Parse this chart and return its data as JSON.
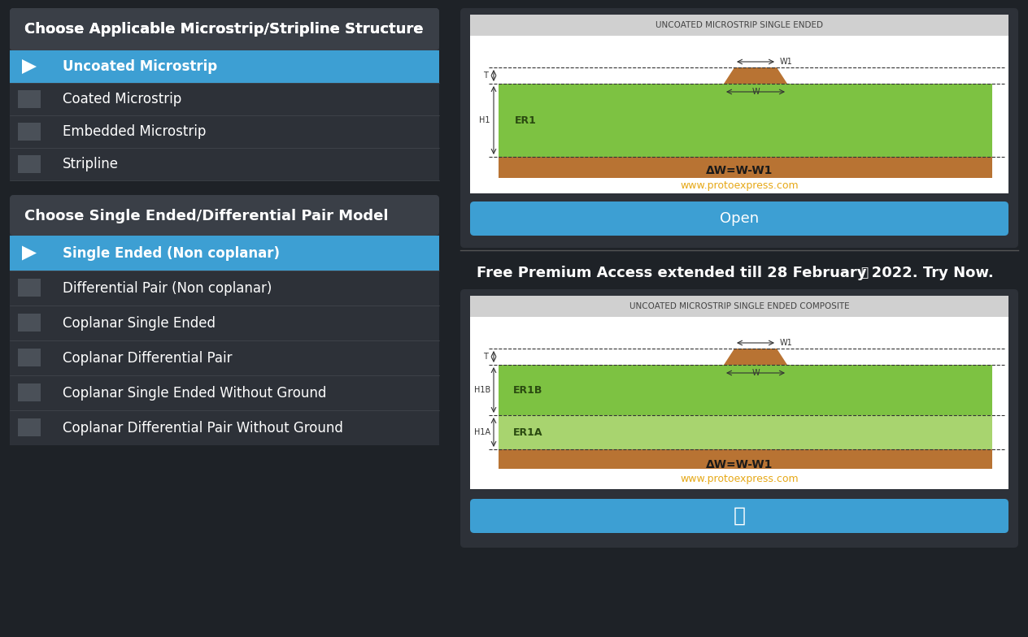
{
  "bg_color": "#1e2227",
  "panel_color": "#2d3138",
  "header_color": "#3a3f47",
  "selected_row_color": "#3d9fd3",
  "unselected_row_color": "#2d3138",
  "checkbox_color": "#4a5058",
  "text_color": "#ffffff",
  "section1_title": "Choose Applicable Microstrip/Stripline Structure",
  "section1_items": [
    "Uncoated Microstrip",
    "Coated Microstrip",
    "Embedded Microstrip",
    "Stripline"
  ],
  "section1_selected": 0,
  "section2_title": "Choose Single Ended/Differential Pair Model",
  "section2_items": [
    "Single Ended (Non coplanar)",
    "Differential Pair (Non coplanar)",
    "Coplanar Single Ended",
    "Coplanar Differential Pair",
    "Coplanar Single Ended Without Ground",
    "Coplanar Differential Pair Without Ground"
  ],
  "section2_selected": 0,
  "card1_title": "UNCOATED MICROSTRIP SINGLE ENDED",
  "card1_formula": "ΔW=W-W1",
  "card1_url": "www.protoexpress.com",
  "card1_btn": "Open",
  "card2_title": "UNCOATED MICROSTRIP SINGLE ENDED COMPOSITE",
  "card2_formula": "ΔW=W-W1",
  "card2_url": "www.protoexpress.com",
  "btn_color": "#3d9fd3",
  "card_bg": "#ffffff",
  "card_header_bg": "#d0d0d0",
  "green_layer": "#7dc242",
  "light_green_layer": "#a8d46f",
  "copper_color": "#b87333",
  "formula_color": "#1a1a1a",
  "url_color": "#e6a817",
  "separator_color": "#555555",
  "free_text": "Free Premium Access extended till 28 February 2022. Try Now.",
  "lock_icon_color": "#cccccc",
  "row_sep_color": "#444950",
  "dim_color": "#333333",
  "er_text_color": "#2a4a10"
}
